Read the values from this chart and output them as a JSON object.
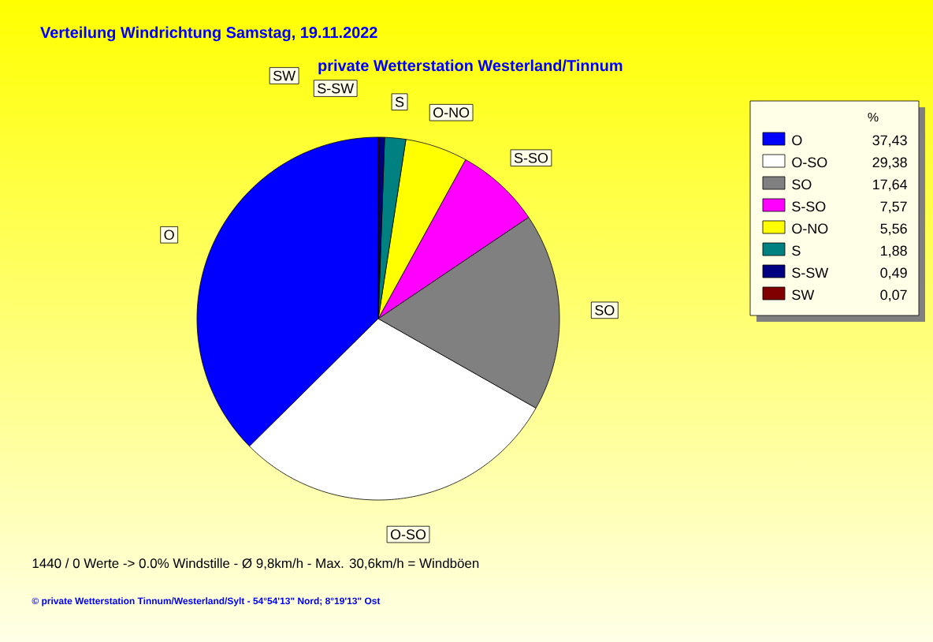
{
  "chart_data": {
    "type": "pie",
    "title": "Verteilung Windrichtung   Samstag, 19.11.2022",
    "subtitle": "private Wetterstation Westerland/Tinnum",
    "categories": [
      "O",
      "O-SO",
      "SO",
      "S-SO",
      "O-NO",
      "S",
      "S-SW",
      "SW"
    ],
    "values": [
      37.43,
      29.38,
      17.64,
      7.57,
      5.56,
      1.88,
      0.49,
      0.07
    ],
    "value_labels": [
      "37,43",
      "29,38",
      "17,64",
      "7,57",
      "5,56",
      "1,88",
      "0,49",
      "0,07"
    ],
    "colors": [
      "#0000ff",
      "#ffffff",
      "#808080",
      "#ff00ff",
      "#ffff00",
      "#008080",
      "#000080",
      "#800000"
    ],
    "legend": "top right",
    "legend_title": "%",
    "annotations": [
      "1440 / 0 Werte  -> 0.0% Windstille   -   Ø 9,8km/h  -  Max. 30,6km/h = Windböen",
      "© private Wetterstation Tinnum/Westerland/Sylt  -  54°54'13\" Nord; 8°19'13\" Ost"
    ]
  }
}
